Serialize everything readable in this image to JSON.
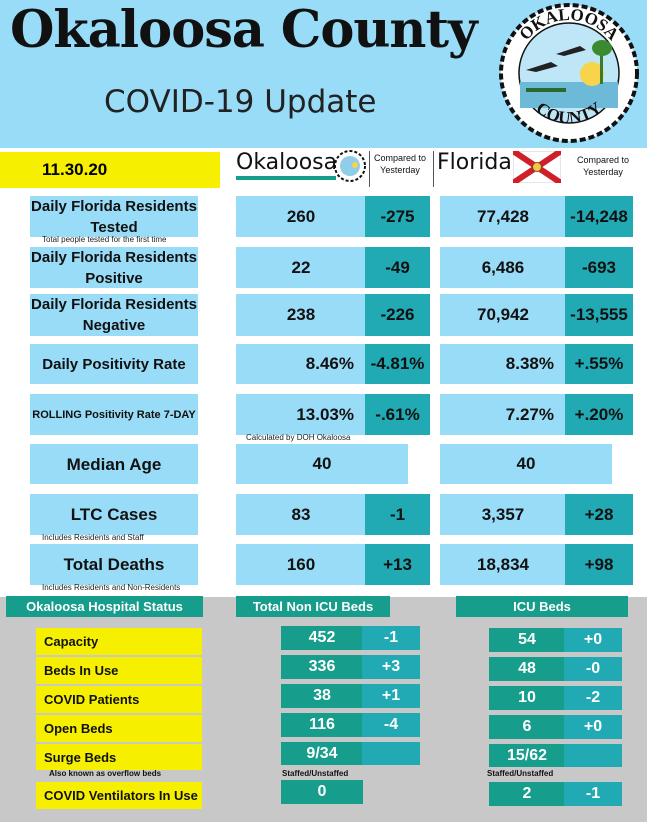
{
  "header": {
    "title": "Okaloosa County",
    "subtitle": "COVID-19 Update",
    "seal_text_top": "OKALOOSA",
    "seal_text_bottom": "COUNTY"
  },
  "date": "11.30.20",
  "columns": {
    "county_name": "Okaloosa",
    "state_name": "Florida",
    "compared_county": "Compared to Yesterday",
    "compared_state": "Compared to Yesterday"
  },
  "rows": [
    {
      "label": "Daily Florida Residents Tested",
      "county": "260",
      "county_change": "-275",
      "state": "77,428",
      "state_change": "-14,248",
      "note": "Total people tested for the first time"
    },
    {
      "label": "Daily Florida Residents Positive",
      "county": "22",
      "county_change": "-49",
      "state": "6,486",
      "state_change": "-693",
      "note": ""
    },
    {
      "label": "Daily Florida Residents Negative",
      "county": "238",
      "county_change": "-226",
      "state": "70,942",
      "state_change": "-13,555",
      "note": ""
    },
    {
      "label": "Daily Positivity Rate",
      "county": "8.46%",
      "county_change": "-4.81%",
      "state": "8.38%",
      "state_change": "+.55%",
      "note": ""
    },
    {
      "label": "ROLLING Positivity Rate 7-DAY",
      "county": "13.03%",
      "county_change": "-.61%",
      "state": "7.27%",
      "state_change": "+.20%",
      "note": "Calculated by DOH Okaloosa"
    },
    {
      "label": "Median Age",
      "county": "40",
      "county_change": "",
      "state": "40",
      "state_change": "",
      "note": ""
    },
    {
      "label": "LTC Cases",
      "county": "83",
      "county_change": "-1",
      "state": "3,357",
      "state_change": "+28",
      "note": "Includes Residents and Staff"
    },
    {
      "label": "Total Deaths",
      "county": "160",
      "county_change": "+13",
      "state": "18,834",
      "state_change": "+98",
      "note": "Includes Residents and Non-Residents"
    }
  ],
  "hospital": {
    "title": "Okaloosa Hospital Status",
    "non_icu_header": "Total Non ICU Beds",
    "icu_header": "ICU Beds",
    "rows": [
      {
        "label": "Capacity",
        "non_icu": "452",
        "non_icu_change": "-1",
        "icu": "54",
        "icu_change": "+0"
      },
      {
        "label": "Beds In Use",
        "non_icu": "336",
        "non_icu_change": "+3",
        "icu": "48",
        "icu_change": "-0"
      },
      {
        "label": "COVID Patients",
        "non_icu": "38",
        "non_icu_change": "+1",
        "icu": "10",
        "icu_change": "-2"
      },
      {
        "label": "Open Beds",
        "non_icu": "116",
        "non_icu_change": "-4",
        "icu": "6",
        "icu_change": "+0"
      },
      {
        "label": "Surge Beds",
        "non_icu": "9/34",
        "non_icu_change": "",
        "icu": "15/62",
        "icu_change": ""
      },
      {
        "label": "COVID Ventilators In Use",
        "non_icu": "0",
        "non_icu_change": "",
        "icu": "2",
        "icu_change": "-1"
      }
    ],
    "surge_note": "Also known as overflow beds",
    "staffed_non_icu": "Staffed/Unstaffed",
    "staffed_icu": "Staffed/Unstaffed"
  }
}
